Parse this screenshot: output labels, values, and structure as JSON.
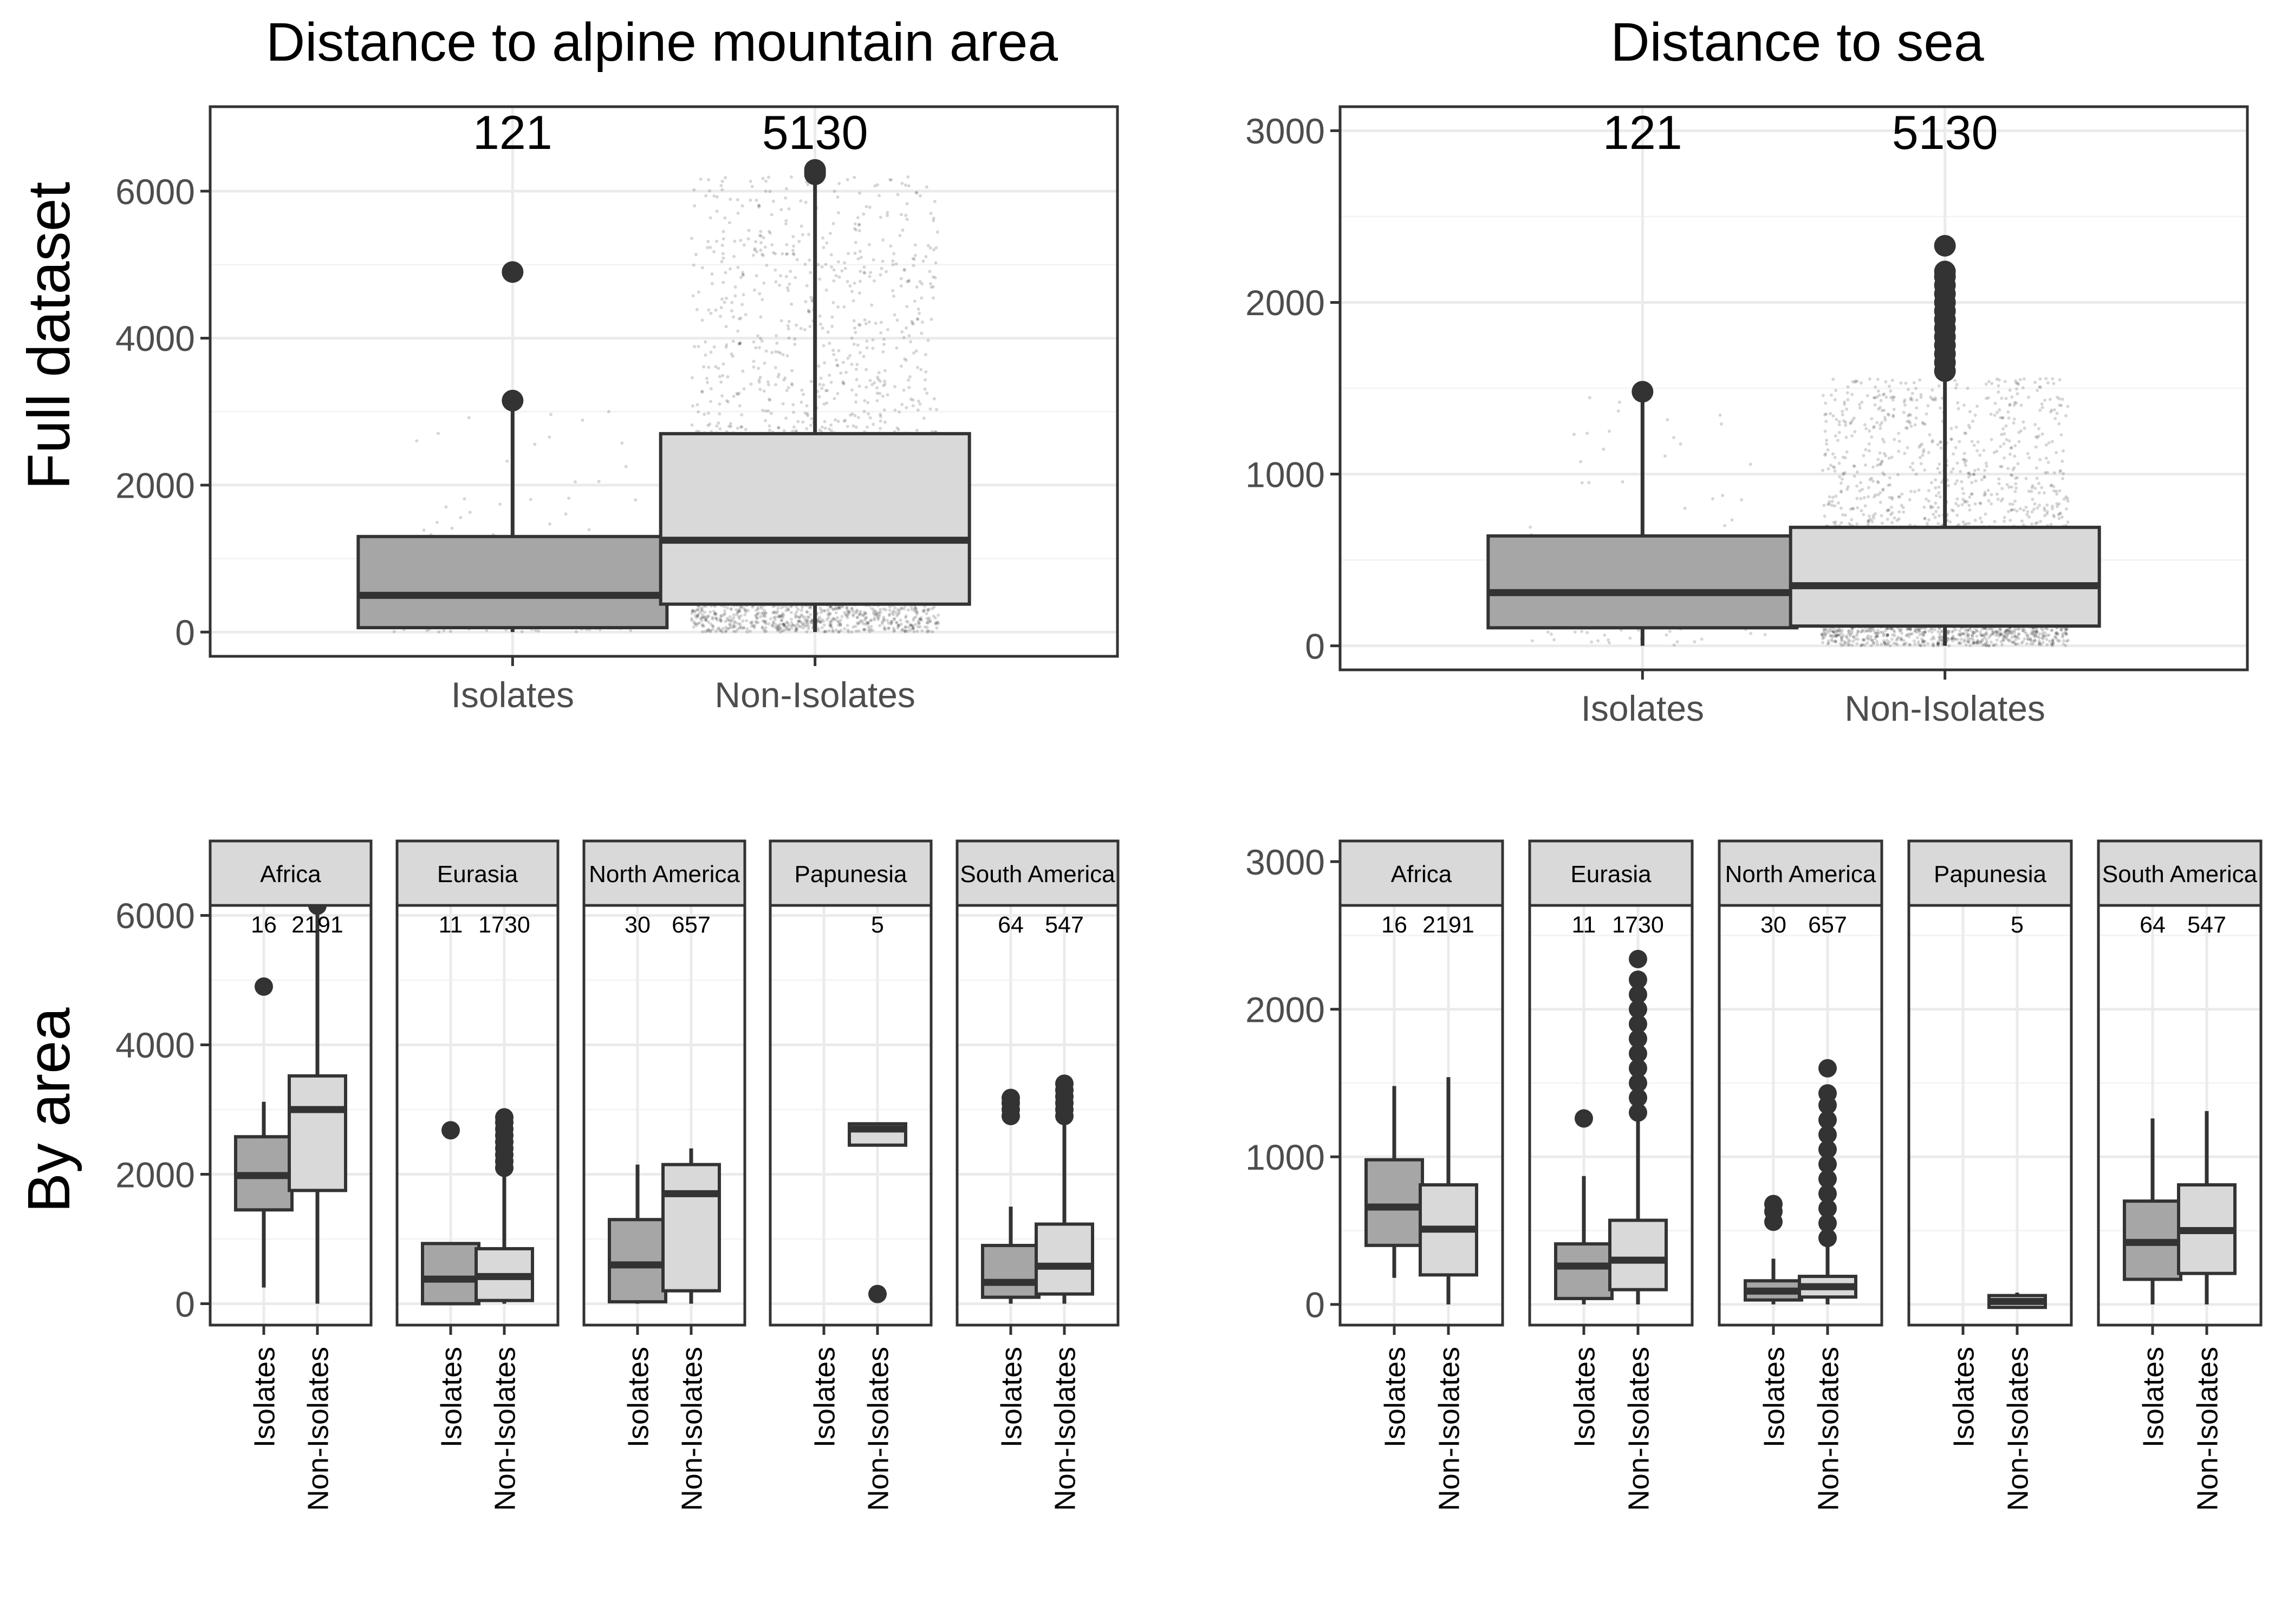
{
  "figure": {
    "column_titles": [
      "Distance to alpine mountain area",
      "Distance to sea"
    ],
    "row_labels": [
      "Full dataset",
      "By area"
    ]
  },
  "colors": {
    "isolates_fill": "#a6a6a6",
    "non_isolates_fill": "#d9d9d9",
    "outline": "#333333",
    "strip_fill": "#d9d9d9",
    "grid_major": "#ebebeb",
    "grid_minor": "#f4f4f4",
    "jitter": "#000000"
  },
  "chart_data": [
    {
      "type": "boxplot",
      "title": "Distance to alpine mountain area",
      "row": "Full dataset",
      "categories": [
        "Isolates",
        "Non-Isolates"
      ],
      "ylim": [
        -330,
        7150
      ],
      "yticks": [
        0,
        2000,
        4000,
        6000
      ],
      "grid": true,
      "jitter_points": true,
      "boxes": [
        {
          "category": "Isolates",
          "n": "121",
          "q1": 60,
          "median": 500,
          "q3": 1300,
          "whisker_low": 0,
          "whisker_high": 3150,
          "outliers": [
            3150,
            4900
          ]
        },
        {
          "category": "Non-Isolates",
          "n": "5130",
          "q1": 380,
          "median": 1250,
          "q3": 2700,
          "whisker_low": 0,
          "whisker_high": 6200,
          "outliers": [
            6230,
            6260,
            6290
          ]
        }
      ]
    },
    {
      "type": "boxplot",
      "title": "Distance to sea",
      "row": "Full dataset",
      "categories": [
        "Isolates",
        "Non-Isolates"
      ],
      "ylim": [
        -140,
        3140
      ],
      "yticks": [
        0,
        1000,
        2000,
        3000
      ],
      "grid": true,
      "jitter_points": true,
      "boxes": [
        {
          "category": "Isolates",
          "n": "121",
          "q1": 105,
          "median": 310,
          "q3": 640,
          "whisker_low": 0,
          "whisker_high": 1470,
          "outliers": [
            1480
          ]
        },
        {
          "category": "Non-Isolates",
          "n": "5130",
          "q1": 115,
          "median": 350,
          "q3": 690,
          "whisker_low": 0,
          "whisker_high": 1560,
          "outliers": [
            1600,
            1650,
            1700,
            1750,
            1800,
            1850,
            1900,
            1950,
            2000,
            2050,
            2100,
            2150,
            2180,
            2330
          ]
        }
      ]
    },
    {
      "type": "boxplot",
      "title": "Distance to alpine mountain area",
      "row": "By area",
      "ylim": [
        -330,
        7150
      ],
      "yticks": [
        0,
        2000,
        4000,
        6000
      ],
      "categories": [
        "Isolates",
        "Non-Isolates"
      ],
      "grid": true,
      "panels": [
        {
          "area": "Africa",
          "boxes": [
            {
              "category": "Isolates",
              "n": "16",
              "q1": 1450,
              "median": 1980,
              "q3": 2580,
              "whisker_low": 250,
              "whisker_high": 3120,
              "outliers": [
                4900
              ]
            },
            {
              "category": "Non-Isolates",
              "n": "2191",
              "q1": 1750,
              "median": 3000,
              "q3": 3520,
              "whisker_low": 0,
              "whisker_high": 6050,
              "outliers": [
                6150,
                6200,
                6260,
                6300
              ]
            }
          ]
        },
        {
          "area": "Eurasia",
          "boxes": [
            {
              "category": "Isolates",
              "n": "11",
              "q1": 0,
              "median": 380,
              "q3": 930,
              "whisker_low": 0,
              "whisker_high": 930,
              "outliers": [
                2680
              ]
            },
            {
              "category": "Non-Isolates",
              "n": "1730",
              "q1": 50,
              "median": 420,
              "q3": 850,
              "whisker_low": 0,
              "whisker_high": 2000,
              "outliers": [
                2100,
                2200,
                2300,
                2400,
                2500,
                2600,
                2700,
                2800,
                2880
              ]
            }
          ]
        },
        {
          "area": "North America",
          "boxes": [
            {
              "category": "Isolates",
              "n": "30",
              "q1": 30,
              "median": 600,
              "q3": 1300,
              "whisker_low": 0,
              "whisker_high": 2150,
              "outliers": []
            },
            {
              "category": "Non-Isolates",
              "n": "657",
              "q1": 200,
              "median": 1700,
              "q3": 2150,
              "whisker_low": 0,
              "whisker_high": 2400,
              "outliers": []
            }
          ]
        },
        {
          "area": "Papunesia",
          "boxes": [
            {
              "category": "Isolates",
              "n": "",
              "q1": null,
              "median": null,
              "q3": null,
              "whisker_low": null,
              "whisker_high": null,
              "outliers": []
            },
            {
              "category": "Non-Isolates",
              "n": "5",
              "q1": 2450,
              "median": 2700,
              "q3": 2780,
              "whisker_low": 2450,
              "whisker_high": 2780,
              "outliers": [
                150
              ]
            }
          ]
        },
        {
          "area": "South America",
          "boxes": [
            {
              "category": "Isolates",
              "n": "64",
              "q1": 100,
              "median": 330,
              "q3": 900,
              "whisker_low": 0,
              "whisker_high": 1500,
              "outliers": [
                2900,
                3000,
                3100,
                3180
              ]
            },
            {
              "category": "Non-Isolates",
              "n": "547",
              "q1": 150,
              "median": 580,
              "q3": 1230,
              "whisker_low": 0,
              "whisker_high": 2800,
              "outliers": [
                2900,
                3000,
                3100,
                3200,
                3300,
                3400
              ]
            }
          ]
        }
      ]
    },
    {
      "type": "boxplot",
      "title": "Distance to sea",
      "row": "By area",
      "ylim": [
        -140,
        3140
      ],
      "yticks": [
        0,
        1000,
        2000,
        3000
      ],
      "categories": [
        "Isolates",
        "Non-Isolates"
      ],
      "grid": true,
      "panels": [
        {
          "area": "Africa",
          "boxes": [
            {
              "category": "Isolates",
              "n": "16",
              "q1": 400,
              "median": 660,
              "q3": 980,
              "whisker_low": 180,
              "whisker_high": 1480,
              "outliers": []
            },
            {
              "category": "Non-Isolates",
              "n": "2191",
              "q1": 200,
              "median": 510,
              "q3": 810,
              "whisker_low": 0,
              "whisker_high": 1540,
              "outliers": []
            }
          ]
        },
        {
          "area": "Eurasia",
          "boxes": [
            {
              "category": "Isolates",
              "n": "11",
              "q1": 40,
              "median": 260,
              "q3": 410,
              "whisker_low": 0,
              "whisker_high": 870,
              "outliers": [
                1260
              ]
            },
            {
              "category": "Non-Isolates",
              "n": "1730",
              "q1": 100,
              "median": 300,
              "q3": 570,
              "whisker_low": 0,
              "whisker_high": 1250,
              "outliers": [
                1300,
                1400,
                1500,
                1600,
                1700,
                1800,
                1900,
                2000,
                2100,
                2200,
                2340
              ]
            }
          ]
        },
        {
          "area": "North America",
          "boxes": [
            {
              "category": "Isolates",
              "n": "30",
              "q1": 30,
              "median": 90,
              "q3": 160,
              "whisker_low": 0,
              "whisker_high": 310,
              "outliers": [
                560,
                630,
                680
              ]
            },
            {
              "category": "Non-Isolates",
              "n": "657",
              "q1": 50,
              "median": 120,
              "q3": 190,
              "whisker_low": 0,
              "whisker_high": 400,
              "outliers": [
                450,
                550,
                650,
                750,
                850,
                950,
                1050,
                1150,
                1250,
                1350,
                1430,
                1600
              ]
            }
          ]
        },
        {
          "area": "Papunesia",
          "boxes": [
            {
              "category": "Isolates",
              "n": "",
              "q1": null,
              "median": null,
              "q3": null,
              "whisker_low": null,
              "whisker_high": null,
              "outliers": []
            },
            {
              "category": "Non-Isolates",
              "n": "5",
              "q1": -20,
              "median": 20,
              "q3": 60,
              "whisker_low": -20,
              "whisker_high": 80,
              "outliers": []
            }
          ]
        },
        {
          "area": "South America",
          "boxes": [
            {
              "category": "Isolates",
              "n": "64",
              "q1": 170,
              "median": 420,
              "q3": 700,
              "whisker_low": 0,
              "whisker_high": 1260,
              "outliers": []
            },
            {
              "category": "Non-Isolates",
              "n": "547",
              "q1": 210,
              "median": 500,
              "q3": 810,
              "whisker_low": 0,
              "whisker_high": 1310,
              "outliers": []
            }
          ]
        }
      ]
    }
  ]
}
